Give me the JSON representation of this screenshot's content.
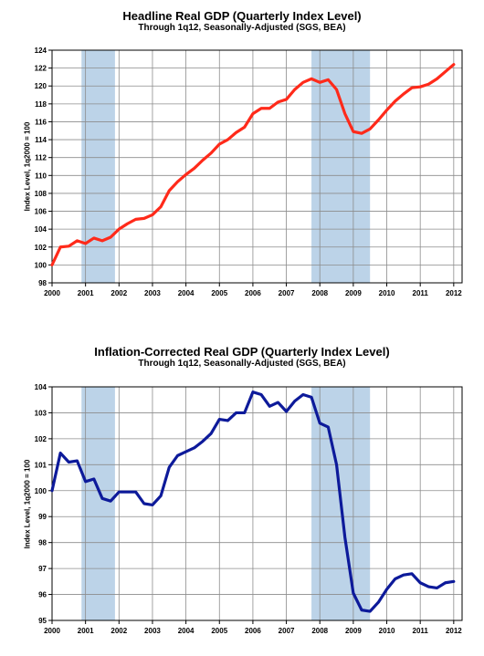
{
  "colors": {
    "recession": "#bcd3e8",
    "headline_line": "#ff2a1a",
    "corrected_line": "#0d1a9a",
    "grid": "#8c8c8c"
  },
  "chart_data": [
    {
      "type": "line",
      "title": "Headline Real GDP (Quarterly Index Level)",
      "subtitle": "Through 1q12, Seasonally-Adjusted (SGS, BEA)",
      "ylabel": "Index Level, 1q2000 = 100",
      "xlim": [
        2000,
        2012.25
      ],
      "ylim": [
        98,
        124
      ],
      "yticks": [
        "98",
        "100",
        "102",
        "104",
        "106",
        "108",
        "110",
        "112",
        "114",
        "116",
        "118",
        "120",
        "122",
        "124"
      ],
      "xticks": [
        "2000",
        "2001",
        "2002",
        "2003",
        "2004",
        "2005",
        "2006",
        "2007",
        "2008",
        "2009",
        "2010",
        "2011",
        "2012"
      ],
      "grid": true,
      "recessions": [
        [
          2000.88,
          2001.88
        ],
        [
          2007.75,
          2009.5
        ]
      ],
      "x": [
        2000.0,
        2000.25,
        2000.5,
        2000.75,
        2001.0,
        2001.25,
        2001.5,
        2001.75,
        2002.0,
        2002.25,
        2002.5,
        2002.75,
        2003.0,
        2003.25,
        2003.5,
        2003.75,
        2004.0,
        2004.25,
        2004.5,
        2004.75,
        2005.0,
        2005.25,
        2005.5,
        2005.75,
        2006.0,
        2006.25,
        2006.5,
        2006.75,
        2007.0,
        2007.25,
        2007.5,
        2007.75,
        2008.0,
        2008.25,
        2008.5,
        2008.75,
        2009.0,
        2009.25,
        2009.5,
        2009.75,
        2010.0,
        2010.25,
        2010.5,
        2010.75,
        2011.0,
        2011.25,
        2011.5,
        2011.75,
        2012.0
      ],
      "series": [
        {
          "values": [
            100.0,
            102.0,
            102.1,
            102.7,
            102.4,
            103.0,
            102.7,
            103.1,
            104.0,
            104.6,
            105.1,
            105.2,
            105.6,
            106.5,
            108.3,
            109.3,
            110.1,
            110.8,
            111.7,
            112.5,
            113.5,
            114.0,
            114.8,
            115.4,
            116.9,
            117.5,
            117.5,
            118.2,
            118.5,
            119.6,
            120.4,
            120.8,
            120.4,
            120.7,
            119.6,
            116.9,
            114.9,
            114.7,
            115.2,
            116.2,
            117.3,
            118.3,
            119.1,
            119.8,
            119.9,
            120.2,
            120.8,
            121.6,
            122.4
          ]
        }
      ]
    },
    {
      "type": "line",
      "title": "Inflation-Corrected Real GDP (Quarterly Index Level)",
      "subtitle": "Through 1q12, Seasonally-Adjusted (SGS, BEA)",
      "ylabel": "Index Level, 1q2000 = 100",
      "xlim": [
        2000,
        2012.25
      ],
      "ylim": [
        95,
        104
      ],
      "yticks": [
        "95",
        "96",
        "97",
        "98",
        "99",
        "100",
        "101",
        "102",
        "103",
        "104"
      ],
      "xticks": [
        "2000",
        "2001",
        "2002",
        "2003",
        "2004",
        "2005",
        "2006",
        "2007",
        "2008",
        "2009",
        "2010",
        "2011",
        "2012"
      ],
      "grid": true,
      "recessions": [
        [
          2000.88,
          2001.88
        ],
        [
          2007.75,
          2009.5
        ]
      ],
      "x": [
        2000.0,
        2000.25,
        2000.5,
        2000.75,
        2001.0,
        2001.25,
        2001.5,
        2001.75,
        2002.0,
        2002.25,
        2002.5,
        2002.75,
        2003.0,
        2003.25,
        2003.5,
        2003.75,
        2004.0,
        2004.25,
        2004.5,
        2004.75,
        2005.0,
        2005.25,
        2005.5,
        2005.75,
        2006.0,
        2006.25,
        2006.5,
        2006.75,
        2007.0,
        2007.25,
        2007.5,
        2007.75,
        2008.0,
        2008.25,
        2008.5,
        2008.75,
        2009.0,
        2009.25,
        2009.5,
        2009.75,
        2010.0,
        2010.25,
        2010.5,
        2010.75,
        2011.0,
        2011.25,
        2011.5,
        2011.75,
        2012.0
      ],
      "series": [
        {
          "values": [
            100.0,
            101.45,
            101.1,
            101.15,
            100.35,
            100.45,
            99.7,
            99.6,
            99.95,
            99.95,
            99.95,
            99.5,
            99.45,
            99.8,
            100.9,
            101.35,
            101.5,
            101.65,
            101.9,
            102.2,
            102.75,
            102.7,
            103.0,
            103.0,
            103.8,
            103.7,
            103.25,
            103.4,
            103.05,
            103.45,
            103.7,
            103.6,
            102.6,
            102.45,
            101.0,
            98.2,
            96.05,
            95.4,
            95.35,
            95.7,
            96.2,
            96.6,
            96.75,
            96.8,
            96.45,
            96.3,
            96.25,
            96.45,
            96.5
          ]
        }
      ]
    }
  ]
}
